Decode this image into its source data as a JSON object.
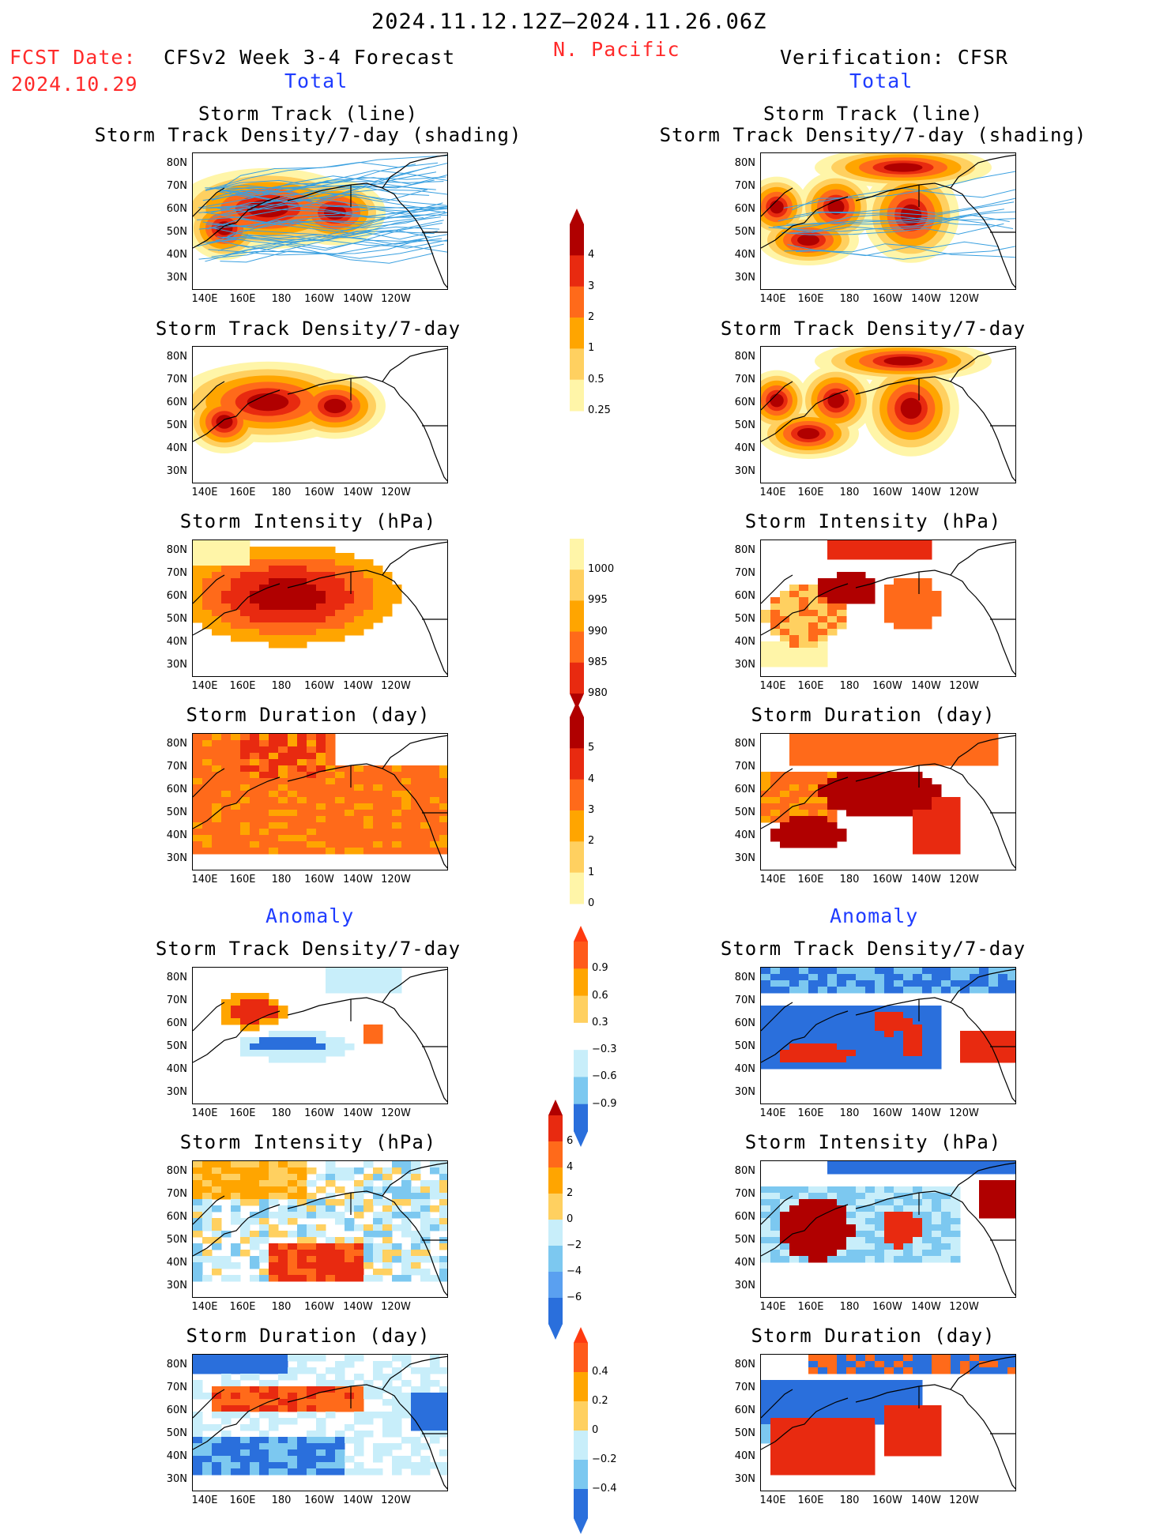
{
  "header": {
    "period": "2024.11.12.12Z—2024.11.26.06Z",
    "region": "N. Pacific",
    "fcst_label": "FCST Date:",
    "fcst_date": "2024.10.29",
    "left_title": "CFSv2 Week 3-4 Forecast",
    "right_title": "Verification: CFSR",
    "total_left": "Total",
    "total_right": "Total",
    "anomaly_left": "Anomaly",
    "anomaly_right": "Anomaly"
  },
  "panels": {
    "track_line": "Storm Track (line)",
    "track_density_shading": "Storm Track Density/7-day (shading)",
    "track_density": "Storm Track Density/7-day",
    "intensity": "Storm Intensity (hPa)",
    "duration": "Storm Duration (day)"
  },
  "axes": {
    "lat_ticks": [
      "80N",
      "70N",
      "60N",
      "50N",
      "40N",
      "30N"
    ],
    "lon_ticks": [
      "140E",
      "160E",
      "180",
      "160W",
      "140W",
      "120W"
    ]
  },
  "colorbars": {
    "density": [
      "4",
      "3",
      "2",
      "1",
      "0.5",
      "0.25"
    ],
    "intensity": [
      "1000",
      "995",
      "990",
      "985",
      "980"
    ],
    "duration": [
      "5",
      "4",
      "3",
      "2",
      "1",
      "0"
    ],
    "density_anom": [
      "0.9",
      "0.6",
      "0.3",
      "−0.3",
      "−0.6",
      "−0.9"
    ],
    "intensity_anom": [
      "6",
      "4",
      "2",
      "0",
      "−2",
      "−4",
      "−6"
    ],
    "duration_anom": [
      "0.4",
      "0.2",
      "0",
      "−0.2",
      "−0.4"
    ]
  },
  "colors": {
    "warm": [
      "#fff5a8",
      "#ffd060",
      "#ffa500",
      "#ff6a1a",
      "#e82a10",
      "#b00000"
    ],
    "cool": [
      "#c8eefa",
      "#7cc8f0",
      "#2a6fdc"
    ],
    "track_line": "#3aa0e0"
  }
}
